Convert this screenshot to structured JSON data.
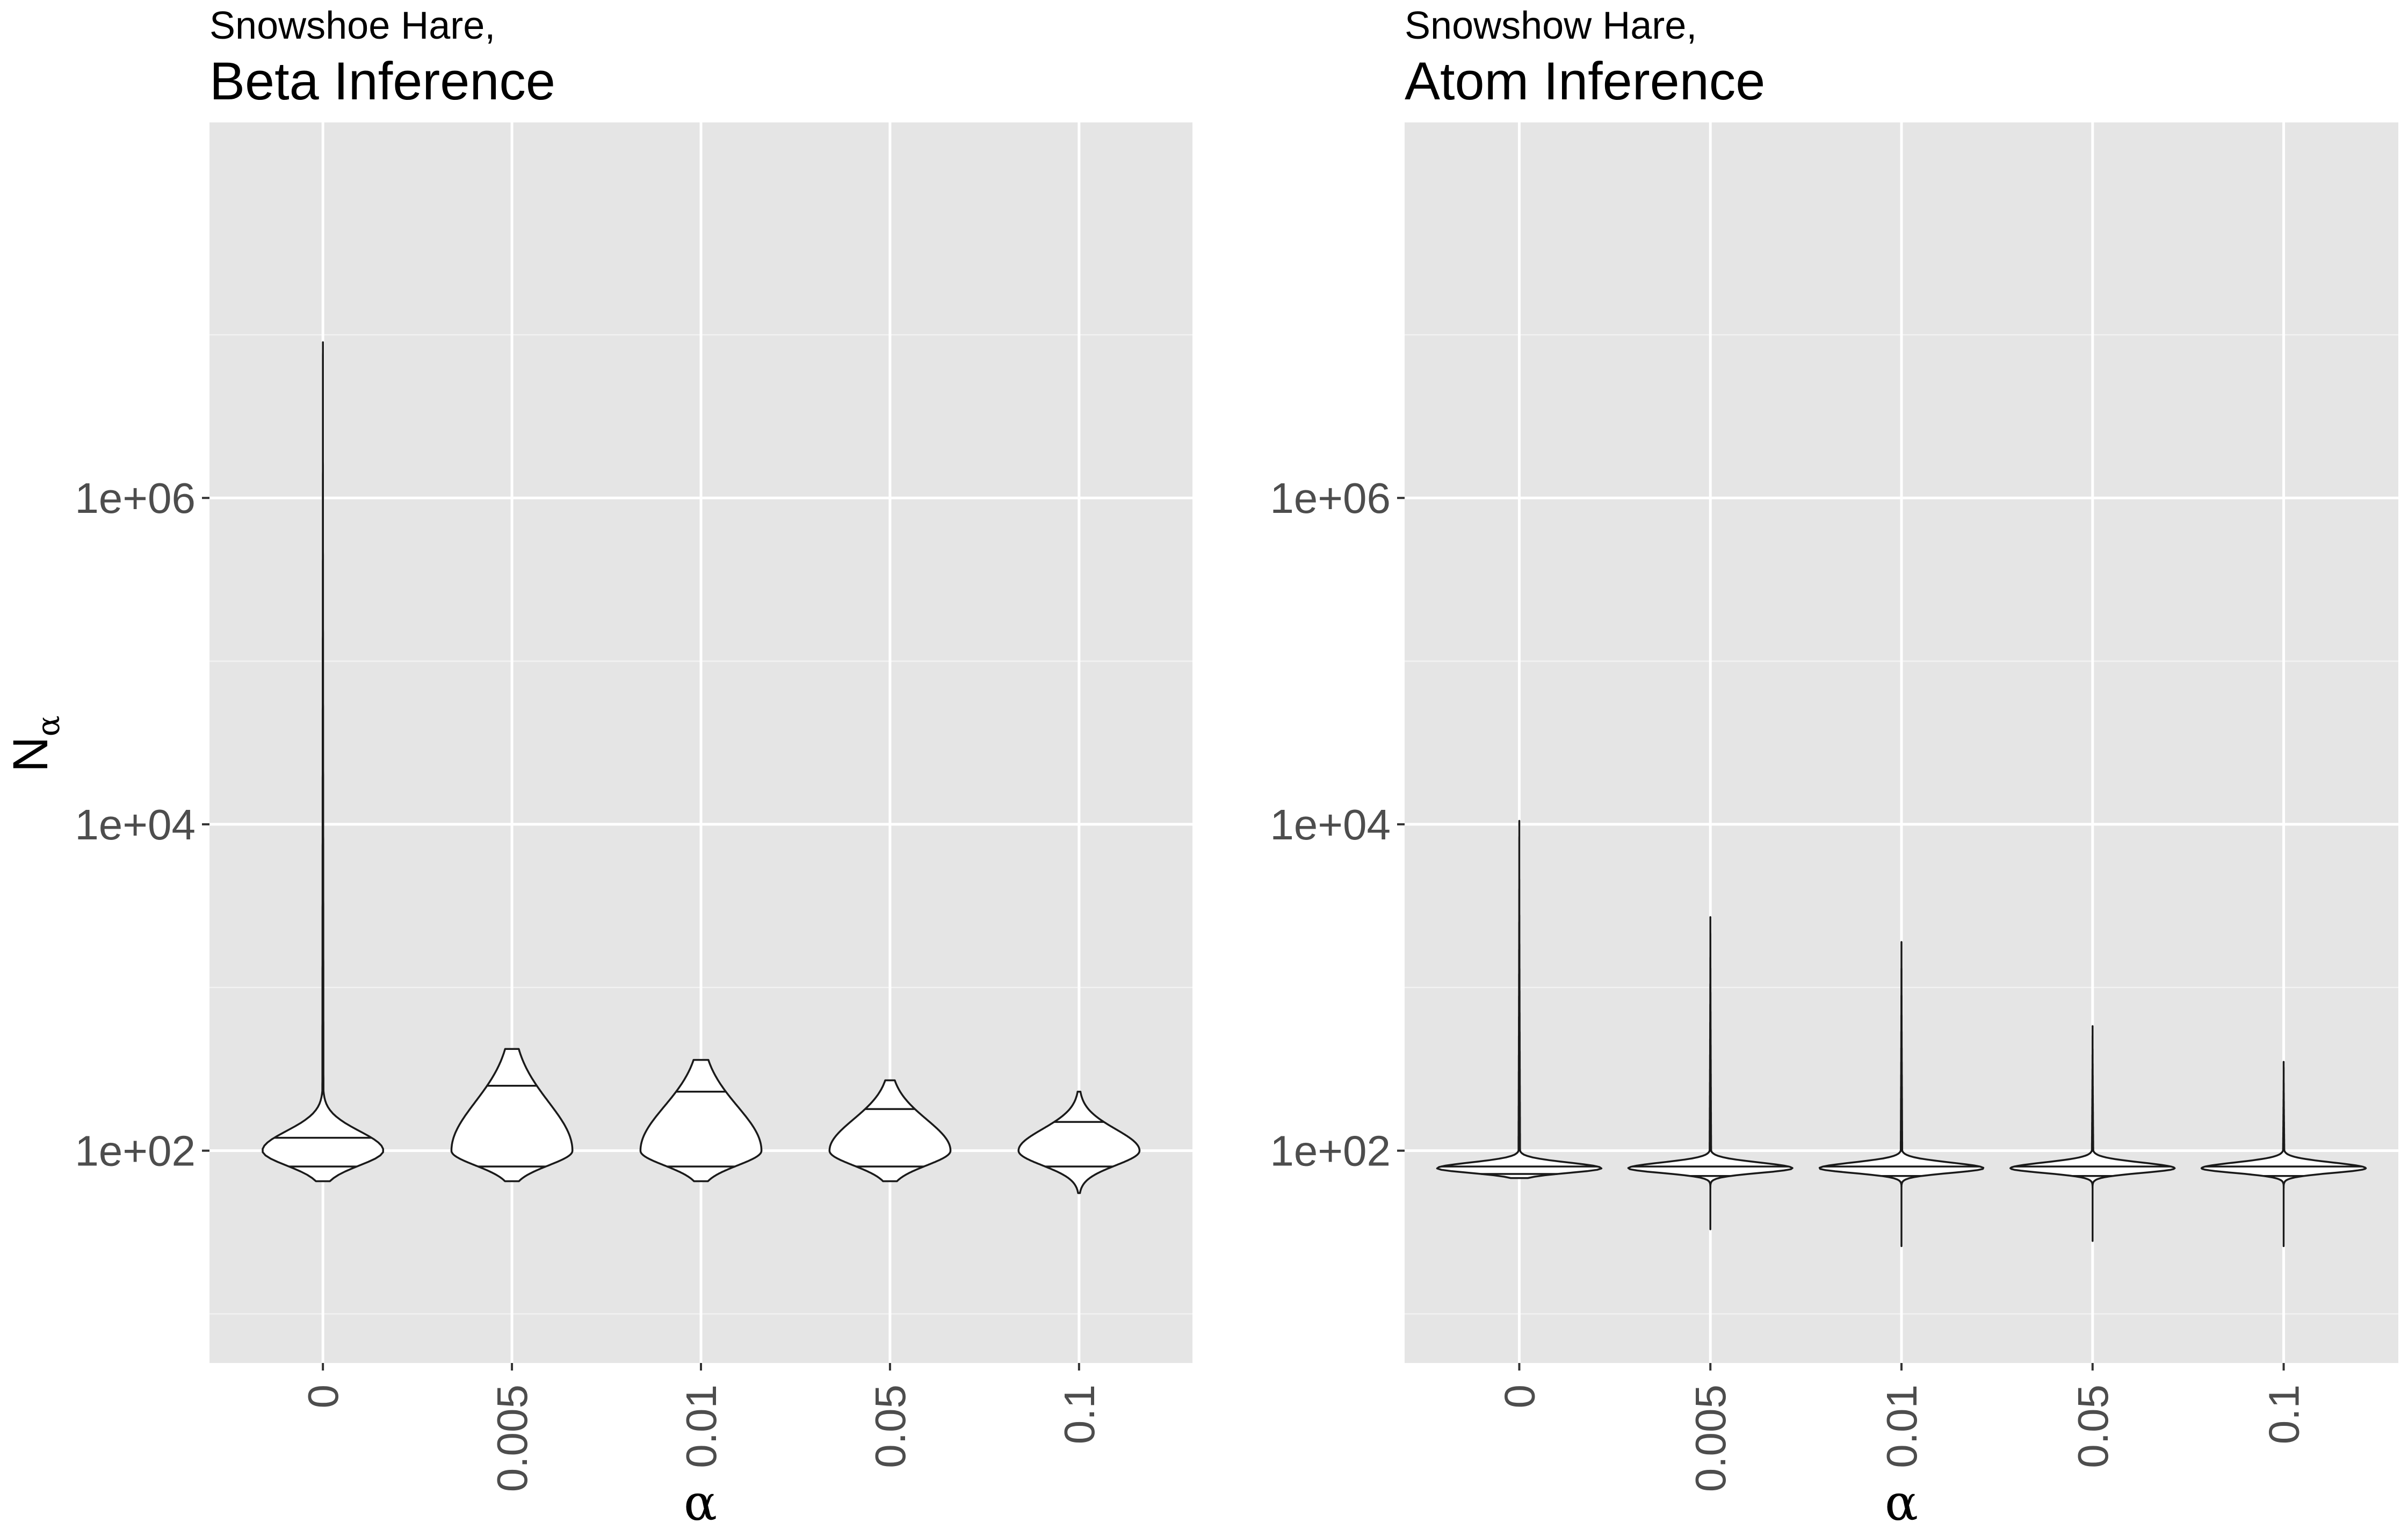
{
  "colors": {
    "panel_background": "#e5e5e5",
    "grid_major": "#ffffff",
    "grid_minor": "#f2f2f2",
    "violin_fill": "#ffffff",
    "violin_stroke": "#1a1a1a",
    "tick_text": "#4d4d4d"
  },
  "chart_data": [
    {
      "type": "violin",
      "subtitle": "Snowshoe Hare,",
      "title": "Beta Inference",
      "xlabel": "α",
      "ylabel": "N",
      "ylabel_subscript": "α",
      "y_scale": "log10",
      "ylim": [
        5,
        200000000
      ],
      "y_ticks": [
        100,
        10000,
        1000000
      ],
      "y_tick_labels": [
        "1e+02",
        "1e+04",
        "1e+06"
      ],
      "y_minor_ticks": [
        10,
        1000,
        100000,
        10000000
      ],
      "categories": [
        "0",
        "0.005",
        "0.01",
        "0.05",
        "0.1"
      ],
      "violins": [
        {
          "category": "0",
          "min": 65,
          "max": 9000000,
          "q1": 80,
          "q3": 120,
          "peak": 100
        },
        {
          "category": "0.005",
          "min": 65,
          "max": 420,
          "q1": 80,
          "q3": 250,
          "peak": 100
        },
        {
          "category": "0.01",
          "min": 65,
          "max": 360,
          "q1": 80,
          "q3": 230,
          "peak": 100
        },
        {
          "category": "0.05",
          "min": 65,
          "max": 270,
          "q1": 80,
          "q3": 180,
          "peak": 100
        },
        {
          "category": "0.1",
          "min": 55,
          "max": 230,
          "q1": 80,
          "q3": 150,
          "peak": 100
        }
      ]
    },
    {
      "type": "violin",
      "subtitle": "Snowshow Hare,",
      "title": "Atom Inference",
      "xlabel": "α",
      "ylabel": "",
      "y_scale": "log10",
      "ylim": [
        5,
        200000000
      ],
      "y_ticks": [
        100,
        10000,
        1000000
      ],
      "y_tick_labels": [
        "1e+02",
        "1e+04",
        "1e+06"
      ],
      "y_minor_ticks": [
        10,
        1000,
        100000,
        10000000
      ],
      "categories": [
        "0",
        "0.005",
        "0.01",
        "0.05",
        "0.1"
      ],
      "violins": [
        {
          "category": "0",
          "min": 68,
          "max": 10500,
          "q1": 72,
          "q3": 80,
          "peak": 78
        },
        {
          "category": "0.005",
          "min": 33,
          "max": 2700,
          "q1": 70,
          "q3": 80,
          "peak": 78
        },
        {
          "category": "0.01",
          "min": 26,
          "max": 1900,
          "q1": 70,
          "q3": 80,
          "peak": 78
        },
        {
          "category": "0.05",
          "min": 28,
          "max": 580,
          "q1": 70,
          "q3": 80,
          "peak": 78
        },
        {
          "category": "0.1",
          "min": 26,
          "max": 350,
          "q1": 70,
          "q3": 80,
          "peak": 78
        }
      ]
    }
  ]
}
